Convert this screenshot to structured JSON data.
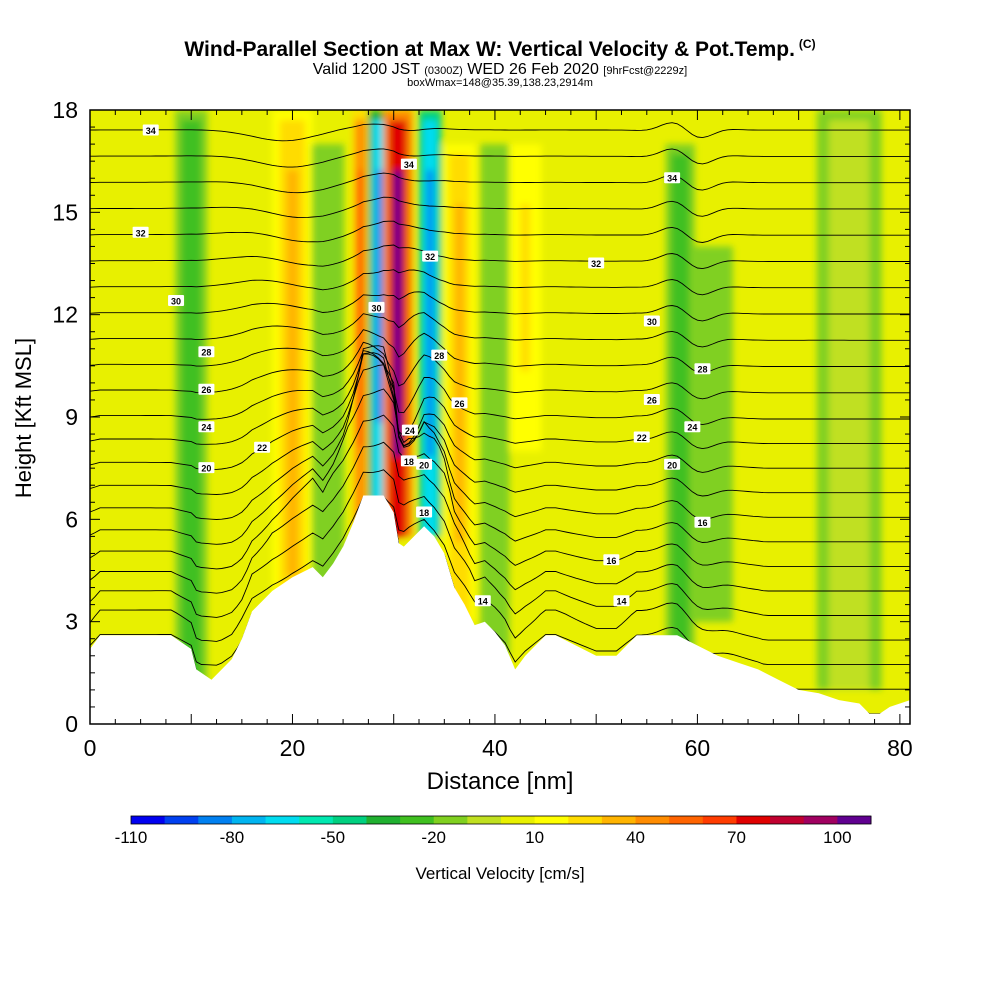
{
  "header": {
    "title": "Wind-Parallel Section at Max W: Vertical Velocity & Pot.Temp.",
    "title_mark": "(C)",
    "valid_prefix": "Valid 1200 JST",
    "valid_utc": "(0300Z)",
    "valid_date": "WED 26 Feb 2020",
    "forecast": "[9hrFcst@2229z]",
    "box_info": "boxWmax=148@35.39,138.23,2914m"
  },
  "chart_data": {
    "type": "heatmap",
    "xlabel": "Distance [nm]",
    "ylabel": "Height [Kft MSL]",
    "xlim": [
      0,
      81
    ],
    "ylim": [
      0,
      18
    ],
    "x_ticks": [
      0,
      20,
      40,
      60,
      80
    ],
    "y_ticks": [
      0,
      3,
      6,
      9,
      12,
      15,
      18
    ],
    "colorbar": {
      "label": "Vertical Velocity [cm/s]",
      "tick_labels": [
        "-110",
        "-80",
        "-50",
        "-20",
        "10",
        "40",
        "70",
        "100"
      ],
      "tick_values": [
        -110,
        -80,
        -50,
        -20,
        10,
        40,
        70,
        100
      ],
      "levels": [
        -110,
        -100,
        -90,
        -80,
        -70,
        -60,
        -50,
        -40,
        -30,
        -20,
        -10,
        0,
        10,
        20,
        30,
        40,
        50,
        60,
        70,
        80,
        90,
        100,
        110
      ],
      "colors": [
        "#0000f0",
        "#0040f0",
        "#0080f0",
        "#00b4f0",
        "#00dcf0",
        "#00e8b0",
        "#00d080",
        "#20b030",
        "#40c020",
        "#80d020",
        "#c0e020",
        "#e8f000",
        "#ffff00",
        "#ffdc00",
        "#ffb400",
        "#ff8c00",
        "#ff6400",
        "#ff3c00",
        "#e00000",
        "#c00030",
        "#a00060",
        "#600090"
      ]
    },
    "terrain_profile": {
      "x": [
        0,
        1,
        8,
        10,
        10.5,
        12,
        14,
        15,
        16,
        17,
        18,
        19,
        20,
        22,
        23,
        24,
        25,
        26,
        27,
        28,
        29,
        30,
        30.5,
        31,
        32,
        33,
        34,
        35,
        36,
        37,
        38,
        39,
        40,
        41,
        42,
        43,
        44,
        45,
        46,
        48,
        50,
        52,
        53,
        54,
        56,
        58,
        60,
        62,
        64,
        66,
        68,
        70,
        72,
        74,
        76,
        77,
        78,
        79,
        81
      ],
      "height_kft": [
        2.2,
        2.6,
        2.6,
        2.2,
        1.6,
        1.3,
        1.9,
        2.5,
        3.3,
        3.6,
        3.9,
        4.1,
        4.3,
        4.6,
        4.3,
        4.7,
        5.2,
        5.9,
        6.7,
        6.7,
        6.7,
        6.2,
        5.3,
        5.2,
        5.5,
        5.8,
        5.5,
        5.0,
        4.0,
        3.5,
        2.9,
        3.0,
        2.7,
        2.3,
        1.6,
        2.0,
        2.3,
        2.6,
        2.6,
        2.3,
        2.0,
        2.0,
        2.3,
        2.6,
        2.6,
        2.6,
        2.3,
        2.0,
        1.8,
        1.6,
        1.3,
        1.0,
        0.9,
        0.7,
        0.6,
        0.3,
        0.3,
        0.5,
        0.7
      ]
    },
    "vertical_velocity_features": [
      {
        "x": 10,
        "z_range": [
          1,
          18
        ],
        "width_nm": 2.0,
        "w": -30
      },
      {
        "x": 20,
        "z_range": [
          2,
          18
        ],
        "width_nm": 2.5,
        "w": 30
      },
      {
        "x": 23.5,
        "z_range": [
          3,
          17
        ],
        "width_nm": 2.0,
        "w": -20
      },
      {
        "x": 26.7,
        "z_range": [
          5.8,
          18
        ],
        "width_nm": 1.0,
        "w": 65
      },
      {
        "x": 28.6,
        "z_range": [
          6.5,
          18
        ],
        "width_nm": 1.4,
        "w": -85
      },
      {
        "x": 30.4,
        "z_range": [
          5.5,
          18
        ],
        "width_nm": 1.8,
        "w": 100
      },
      {
        "x": 33.6,
        "z_range": [
          5.5,
          18
        ],
        "width_nm": 1.4,
        "w": -90
      },
      {
        "x": 36.5,
        "z_range": [
          3,
          17
        ],
        "width_nm": 2.0,
        "w": 30
      },
      {
        "x": 40,
        "z_range": [
          2,
          17
        ],
        "width_nm": 1.8,
        "w": -20
      },
      {
        "x": 43,
        "z_range": [
          8,
          17
        ],
        "width_nm": 2.0,
        "w": 25
      },
      {
        "x": 58.3,
        "z_range": [
          2,
          17
        ],
        "width_nm": 1.8,
        "w": -30
      },
      {
        "x": 61.5,
        "z_range": [
          3,
          14
        ],
        "width_nm": 2.5,
        "w": -15
      },
      {
        "x": 75,
        "z_range": [
          1,
          18
        ],
        "width_nm": 4.0,
        "w": -10
      }
    ],
    "theta_contour_labels": [
      {
        "text": "34",
        "x": 6,
        "z": 17.4
      },
      {
        "text": "34",
        "x": 31.5,
        "z": 16.4
      },
      {
        "text": "34",
        "x": 57.5,
        "z": 16.0
      },
      {
        "text": "32",
        "x": 5,
        "z": 14.4
      },
      {
        "text": "32",
        "x": 33.6,
        "z": 13.7
      },
      {
        "text": "32",
        "x": 50,
        "z": 13.5
      },
      {
        "text": "30",
        "x": 8.5,
        "z": 12.4
      },
      {
        "text": "30",
        "x": 28.3,
        "z": 12.2
      },
      {
        "text": "30",
        "x": 55.5,
        "z": 11.8
      },
      {
        "text": "28",
        "x": 11.5,
        "z": 10.9
      },
      {
        "text": "28",
        "x": 34.5,
        "z": 10.8
      },
      {
        "text": "28",
        "x": 60.5,
        "z": 10.4
      },
      {
        "text": "26",
        "x": 11.5,
        "z": 9.8
      },
      {
        "text": "26",
        "x": 36.5,
        "z": 9.4
      },
      {
        "text": "26",
        "x": 55.5,
        "z": 9.5
      },
      {
        "text": "24",
        "x": 11.5,
        "z": 8.7
      },
      {
        "text": "24",
        "x": 31.6,
        "z": 8.6
      },
      {
        "text": "24",
        "x": 59.5,
        "z": 8.7
      },
      {
        "text": "22",
        "x": 17,
        "z": 8.1
      },
      {
        "text": "22",
        "x": 54.5,
        "z": 8.4
      },
      {
        "text": "20",
        "x": 11.5,
        "z": 7.5
      },
      {
        "text": "20",
        "x": 33,
        "z": 7.6
      },
      {
        "text": "20",
        "x": 57.5,
        "z": 7.6
      },
      {
        "text": "18",
        "x": 31.5,
        "z": 7.7
      },
      {
        "text": "18",
        "x": 33,
        "z": 6.2
      },
      {
        "text": "16",
        "x": 60.5,
        "z": 5.9
      },
      {
        "text": "16",
        "x": 51.5,
        "z": 4.8
      },
      {
        "text": "14",
        "x": 38.8,
        "z": 3.6
      },
      {
        "text": "14",
        "x": 52.5,
        "z": 3.6
      }
    ],
    "theta_contour_levels": [
      12,
      13,
      14,
      15,
      16,
      17,
      18,
      19,
      20,
      21,
      22,
      23,
      24,
      25,
      26,
      27,
      28,
      29,
      30,
      31,
      32,
      33,
      34,
      35
    ]
  }
}
